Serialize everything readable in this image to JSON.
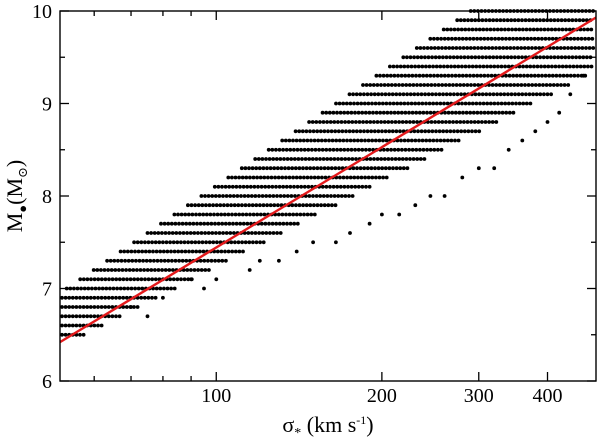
{
  "chart_data": {
    "type": "scatter",
    "xlabel": "σ* (km s-1)",
    "ylabel": "M•(M⊙)",
    "xscale": "log",
    "xlim": [
      52,
      490
    ],
    "ylim": [
      6,
      10
    ],
    "x_ticks": [
      100,
      200,
      300,
      400
    ],
    "y_ticks": [
      6,
      7,
      8,
      9,
      10
    ],
    "grid": false,
    "colors": {
      "points": "#000000",
      "fit_line": "#e41a1c"
    },
    "fit_line": {
      "x": [
        52,
        490
      ],
      "y": [
        6.42,
        9.93
      ]
    },
    "points_model": {
      "description": "dense grid of black dots in horizontal rows, y step 0.1",
      "y_rows_from": 6.5,
      "y_rows_to": 10.0,
      "y_step": 0.1,
      "row_bounds_note": "each row spans from left edge to an upper-sigma cutoff, with sparse outliers below the main band",
      "left_x_min": 52,
      "right_x_max": 490
    }
  },
  "labels": {
    "x_tick_100": "100",
    "x_tick_200": "200",
    "x_tick_300": "300",
    "x_tick_400": "400",
    "y_tick_6": "6",
    "y_tick_7": "7",
    "y_tick_8": "8",
    "y_tick_9": "9",
    "y_tick_10": "10",
    "xlabel_sigma": "σ",
    "xlabel_star": "*",
    "xlabel_unit": " (km s",
    "xlabel_exp": "-1",
    "xlabel_close": ")",
    "ylabel_M": "M",
    "ylabel_bullet": "●",
    "ylabel_paren_open": "(M",
    "ylabel_sun": "⊙",
    "ylabel_paren_close": ")"
  }
}
